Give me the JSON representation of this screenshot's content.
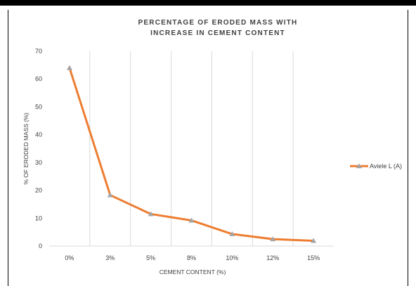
{
  "chart_data": {
    "type": "line",
    "title": [
      "PERCENTAGE OF ERODED MASS WITH",
      "INCREASE IN CEMENT CONTENT"
    ],
    "xlabel": "CEMENT CONTENT (%)",
    "ylabel": "% OF ERODED MASS (%)",
    "categories": [
      "0%",
      "3%",
      "5%",
      "8%",
      "10%",
      "12%",
      "15%"
    ],
    "ylim": [
      0,
      70
    ],
    "yticks": [
      "0",
      "10",
      "20",
      "30",
      "40",
      "50",
      "60",
      "70"
    ],
    "series": [
      {
        "name": "Aviele L (A)",
        "values": [
          64,
          18.3,
          11.5,
          9.2,
          4.3,
          2.5,
          1.9
        ]
      }
    ],
    "legend_position": "right",
    "grid": "vertical",
    "line_color": "#ED7D31",
    "marker_color": "#A5A5A5"
  }
}
